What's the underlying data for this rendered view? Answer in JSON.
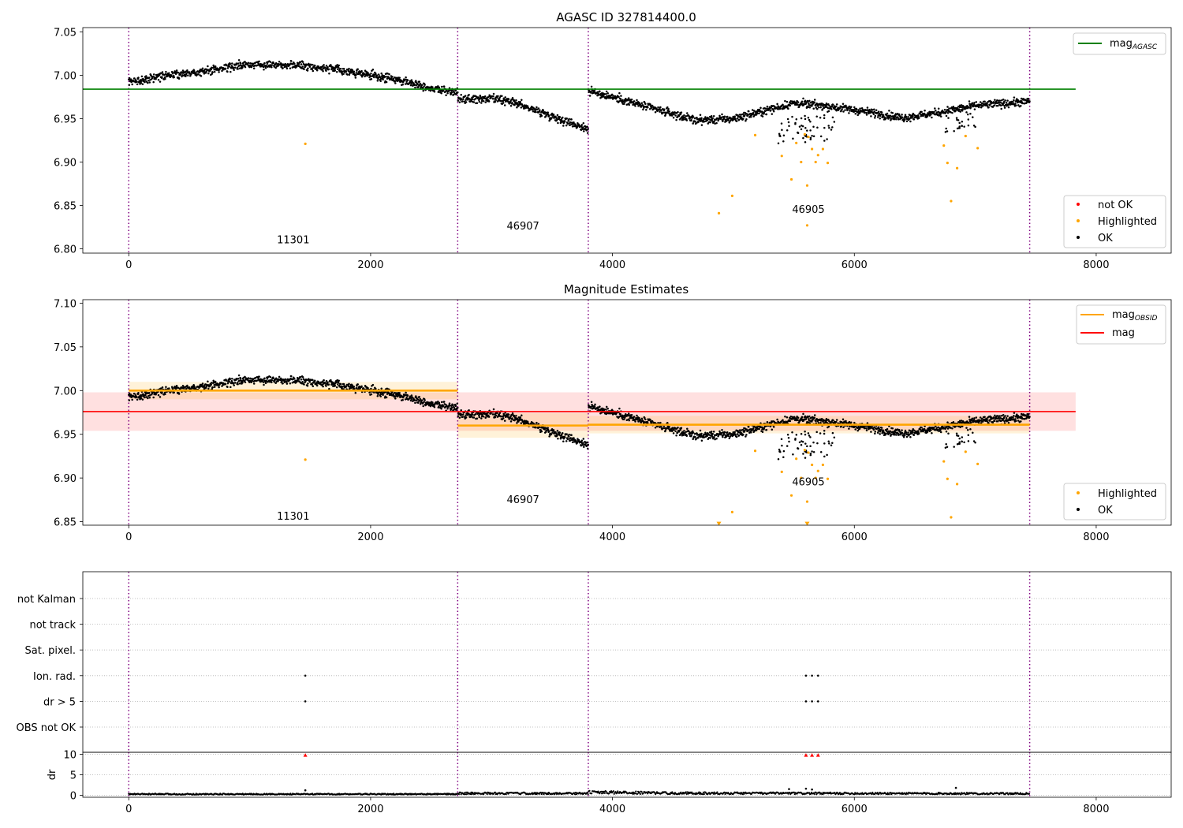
{
  "figure": {
    "title_top": "AGASC ID 327814400.0",
    "title_mid": "Magnitude Estimates"
  },
  "colors": {
    "ok": "#000000",
    "highlighted": "#ffa500",
    "not_ok": "#ff0000",
    "agasc_line": "#008000",
    "obsid_line": "#ffa500",
    "mag_line": "#ff0000",
    "obs_boundary": "#800080"
  },
  "chart_data": [
    {
      "type": "scatter",
      "panel": "top",
      "title": "AGASC ID 327814400.0",
      "xlim": [
        -380,
        8620
      ],
      "ylim": [
        6.795,
        7.055
      ],
      "xticks": [
        0,
        2000,
        4000,
        6000,
        8000
      ],
      "yticks": [
        6.8,
        6.85,
        6.9,
        6.95,
        7.0,
        7.05
      ],
      "ytick_labels": [
        "6.80",
        "6.85",
        "6.90",
        "6.95",
        "7.00",
        "7.05"
      ],
      "obs_boundaries": [
        0,
        2720,
        3800,
        7450
      ],
      "obs_labels": [
        {
          "text": "11301",
          "x": 1360,
          "y": 6.81
        },
        {
          "text": "46907",
          "x": 3260,
          "y": 6.826
        },
        {
          "text": "46905",
          "x": 5620,
          "y": 6.845
        }
      ],
      "hline": {
        "name": "mag$_{AGASC}$",
        "y": 6.984,
        "xmin": -380,
        "xmax": 7830
      },
      "trend": [
        [
          0,
          6.992
        ],
        [
          300,
          7.0
        ],
        [
          600,
          7.004
        ],
        [
          900,
          7.011
        ],
        [
          1100,
          7.013
        ],
        [
          1400,
          7.012
        ],
        [
          1700,
          7.007
        ],
        [
          2000,
          7.0
        ],
        [
          2300,
          6.993
        ],
        [
          2500,
          6.985
        ],
        [
          2720,
          6.98
        ],
        [
          2720,
          6.972
        ],
        [
          3000,
          6.973
        ],
        [
          3200,
          6.968
        ],
        [
          3500,
          6.953
        ],
        [
          3800,
          6.938
        ],
        [
          3800,
          6.982
        ],
        [
          4000,
          6.975
        ],
        [
          4300,
          6.963
        ],
        [
          4700,
          6.948
        ],
        [
          5000,
          6.95
        ],
        [
          5200,
          6.957
        ],
        [
          5500,
          6.968
        ],
        [
          5800,
          6.964
        ],
        [
          6100,
          6.958
        ],
        [
          6400,
          6.951
        ],
        [
          6700,
          6.957
        ],
        [
          7000,
          6.965
        ],
        [
          7450,
          6.97
        ]
      ],
      "highlighted_points": [
        [
          1460,
          6.921
        ],
        [
          4880,
          6.841
        ],
        [
          4990,
          6.861
        ],
        [
          5180,
          6.931
        ],
        [
          5400,
          6.907
        ],
        [
          5480,
          6.88
        ],
        [
          5520,
          6.922
        ],
        [
          5560,
          6.9
        ],
        [
          5590,
          6.932
        ],
        [
          5610,
          6.873
        ],
        [
          5620,
          6.929
        ],
        [
          5650,
          6.915
        ],
        [
          5680,
          6.9
        ],
        [
          5700,
          6.908
        ],
        [
          5740,
          6.915
        ],
        [
          5780,
          6.899
        ],
        [
          5610,
          6.827
        ],
        [
          6740,
          6.919
        ],
        [
          6770,
          6.899
        ],
        [
          6800,
          6.855
        ],
        [
          6850,
          6.893
        ],
        [
          6920,
          6.93
        ],
        [
          7020,
          6.916
        ]
      ],
      "legend_lines": [
        {
          "label": "mag",
          "sub": "AGASC",
          "color": "#008000"
        }
      ],
      "legend_points": [
        {
          "label": "not OK",
          "color": "#ff0000"
        },
        {
          "label": "Highlighted",
          "color": "#ffa500"
        },
        {
          "label": "OK",
          "color": "#000000"
        }
      ]
    },
    {
      "type": "scatter",
      "panel": "middle",
      "title": "Magnitude Estimates",
      "xlim": [
        -380,
        8620
      ],
      "ylim": [
        6.846,
        7.104
      ],
      "xticks": [
        0,
        2000,
        4000,
        6000,
        8000
      ],
      "yticks": [
        6.85,
        6.9,
        6.95,
        7.0,
        7.05,
        7.1
      ],
      "ytick_labels": [
        "6.85",
        "6.90",
        "6.95",
        "7.00",
        "7.05",
        "7.10"
      ],
      "obs_boundaries": [
        0,
        2720,
        3800,
        7450
      ],
      "obs_labels": [
        {
          "text": "11301",
          "x": 1360,
          "y": 6.856
        },
        {
          "text": "46907",
          "x": 3260,
          "y": 6.875
        },
        {
          "text": "46905",
          "x": 5620,
          "y": 6.895
        }
      ],
      "mag_band": {
        "name": "mag",
        "y": 6.976,
        "low": 6.954,
        "high": 6.998,
        "xmin": -380,
        "xmax": 7830
      },
      "obsid_segments": [
        {
          "x0": 0,
          "x1": 2720,
          "y": 7.0,
          "low": 6.99,
          "high": 7.01
        },
        {
          "x0": 2720,
          "x1": 3800,
          "y": 6.96,
          "low": 6.946,
          "high": 6.974
        },
        {
          "x0": 3800,
          "x1": 7450,
          "y": 6.961,
          "low": 6.951,
          "high": 6.971
        }
      ],
      "trend": [
        [
          0,
          6.992
        ],
        [
          300,
          7.0
        ],
        [
          600,
          7.004
        ],
        [
          900,
          7.011
        ],
        [
          1100,
          7.013
        ],
        [
          1400,
          7.012
        ],
        [
          1700,
          7.007
        ],
        [
          2000,
          7.0
        ],
        [
          2300,
          6.993
        ],
        [
          2500,
          6.985
        ],
        [
          2720,
          6.98
        ],
        [
          2720,
          6.972
        ],
        [
          3000,
          6.973
        ],
        [
          3200,
          6.968
        ],
        [
          3500,
          6.953
        ],
        [
          3800,
          6.938
        ],
        [
          3800,
          6.982
        ],
        [
          4000,
          6.975
        ],
        [
          4300,
          6.963
        ],
        [
          4700,
          6.948
        ],
        [
          5000,
          6.95
        ],
        [
          5200,
          6.957
        ],
        [
          5500,
          6.968
        ],
        [
          5800,
          6.964
        ],
        [
          6100,
          6.958
        ],
        [
          6400,
          6.951
        ],
        [
          6700,
          6.957
        ],
        [
          7000,
          6.965
        ],
        [
          7450,
          6.97
        ]
      ],
      "highlighted_points": [
        [
          1460,
          6.921
        ],
        [
          4990,
          6.861
        ],
        [
          5180,
          6.931
        ],
        [
          5400,
          6.907
        ],
        [
          5480,
          6.88
        ],
        [
          5520,
          6.922
        ],
        [
          5560,
          6.9
        ],
        [
          5590,
          6.932
        ],
        [
          5610,
          6.873
        ],
        [
          5620,
          6.929
        ],
        [
          5650,
          6.915
        ],
        [
          5680,
          6.9
        ],
        [
          5700,
          6.908
        ],
        [
          5740,
          6.915
        ],
        [
          5780,
          6.899
        ],
        [
          6740,
          6.919
        ],
        [
          6770,
          6.899
        ],
        [
          6800,
          6.855
        ],
        [
          6850,
          6.893
        ],
        [
          6920,
          6.93
        ],
        [
          7020,
          6.916
        ]
      ],
      "clipped_points": [
        [
          4880,
          6.849
        ],
        [
          5610,
          6.849
        ]
      ],
      "legend_lines": [
        {
          "label": "mag",
          "sub": "OBSID",
          "color": "#ffa500"
        },
        {
          "label": "mag",
          "sub": "",
          "color": "#ff0000"
        }
      ],
      "legend_points": [
        {
          "label": "Highlighted",
          "color": "#ffa500"
        },
        {
          "label": "OK",
          "color": "#000000"
        }
      ]
    },
    {
      "type": "scatter",
      "panel": "flags",
      "xlim": [
        -380,
        8620
      ],
      "xticks": [
        0,
        2000,
        4000,
        6000,
        8000
      ],
      "categories": [
        "not Kalman",
        "not track",
        "Sat. pixel.",
        "Ion. rad.",
        "dr > 5",
        "OBS not OK"
      ],
      "obs_boundaries": [
        0,
        2720,
        3800,
        7450
      ],
      "flag_points": [
        {
          "category": "Ion. rad.",
          "x": [
            1460,
            5600,
            5650,
            5700
          ]
        },
        {
          "category": "dr > 5",
          "x": [
            1460,
            5600,
            5650,
            5700
          ]
        }
      ]
    },
    {
      "type": "scatter",
      "panel": "dr",
      "ylabel": "dr",
      "xlim": [
        -380,
        8620
      ],
      "ylim": [
        -0.5,
        10.5
      ],
      "xticks": [
        0,
        2000,
        4000,
        6000,
        8000
      ],
      "yticks": [
        0,
        5,
        10
      ],
      "obs_boundaries": [
        0,
        2720,
        3800,
        7450
      ],
      "clipped_points": [
        [
          1460,
          10
        ],
        [
          5600,
          10
        ],
        [
          5650,
          10
        ],
        [
          5700,
          10
        ]
      ],
      "outliers": [
        [
          1460,
          1.2
        ],
        [
          5460,
          1.5
        ],
        [
          5600,
          1.6
        ],
        [
          5650,
          1.4
        ],
        [
          6840,
          1.8
        ]
      ],
      "baseline": [
        [
          0,
          0.3
        ],
        [
          2720,
          0.3
        ],
        [
          2720,
          0.55
        ],
        [
          3800,
          0.5
        ],
        [
          3800,
          0.85
        ],
        [
          4500,
          0.6
        ],
        [
          7450,
          0.45
        ]
      ]
    }
  ]
}
